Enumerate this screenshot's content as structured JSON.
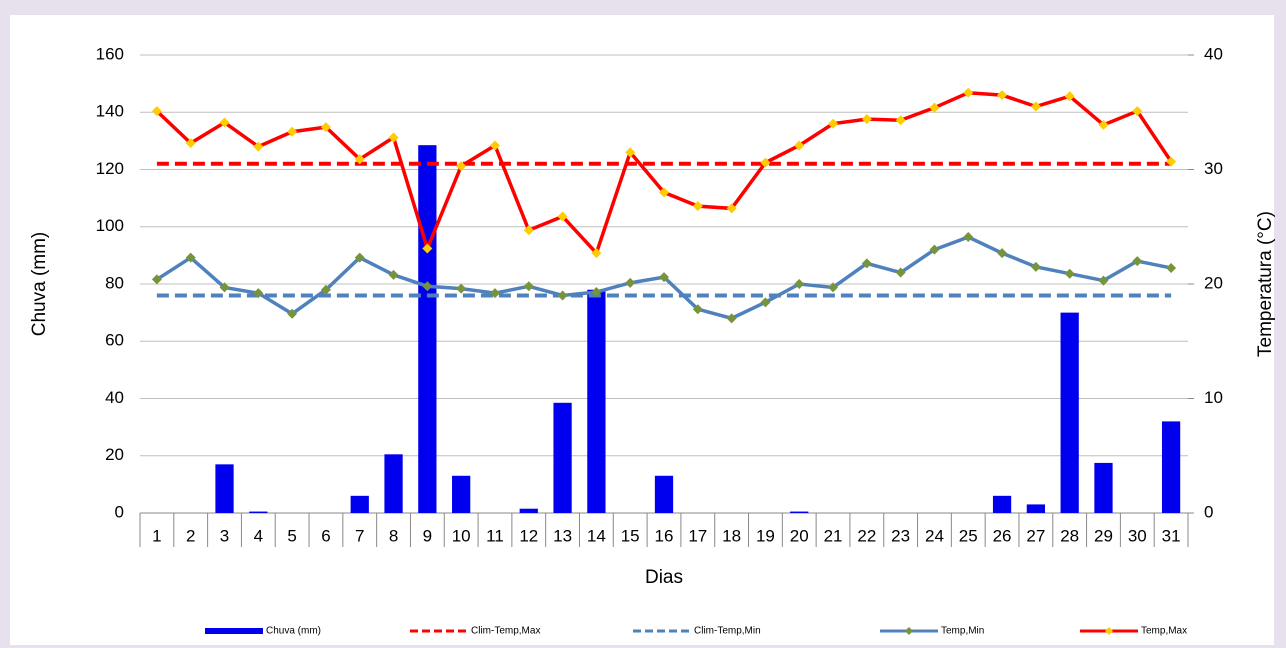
{
  "chart_data": {
    "type": "bar-line",
    "x_label": "Dias",
    "y_label": "Chuva (mm)",
    "y2_label": "Temperatura (°C)",
    "categories": [
      "1",
      "2",
      "3",
      "4",
      "5",
      "6",
      "7",
      "8",
      "9",
      "10",
      "11",
      "12",
      "13",
      "14",
      "15",
      "16",
      "17",
      "18",
      "19",
      "20",
      "21",
      "22",
      "23",
      "24",
      "25",
      "26",
      "27",
      "28",
      "29",
      "30",
      "31"
    ],
    "ylim": [
      0,
      160
    ],
    "yticks": [
      0,
      20,
      40,
      60,
      80,
      100,
      120,
      140,
      160
    ],
    "y2lim": [
      0,
      40
    ],
    "y2ticks": [
      0,
      10,
      20,
      30,
      40
    ],
    "grid": true,
    "legend": "bottom",
    "series": [
      {
        "name": "Chuva (mm)",
        "type": "bar",
        "color": "#0000ee",
        "values": [
          0,
          0,
          17,
          0.5,
          0,
          0,
          6,
          20.5,
          128.5,
          13,
          0,
          1.5,
          38.5,
          78,
          0,
          13,
          0,
          0,
          0,
          0.5,
          0,
          0,
          0,
          0,
          0,
          6,
          3,
          70,
          17.5,
          0,
          32
        ]
      },
      {
        "name": "Clim-Temp,Max",
        "type": "dashed",
        "axis": "y2",
        "color": "#ff0000",
        "values": [
          30.5,
          30.5,
          30.5,
          30.5,
          30.5,
          30.5,
          30.5,
          30.5,
          30.5,
          30.5,
          30.5,
          30.5,
          30.5,
          30.5,
          30.5,
          30.5,
          30.5,
          30.5,
          30.5,
          30.5,
          30.5,
          30.5,
          30.5,
          30.5,
          30.5,
          30.5,
          30.5,
          30.5,
          30.5,
          30.5,
          30.5
        ]
      },
      {
        "name": "Clim-Temp,Min",
        "type": "dashed",
        "axis": "y2",
        "color": "#4f81bd",
        "values": [
          19,
          19,
          19,
          19,
          19,
          19,
          19,
          19,
          19,
          19,
          19,
          19,
          19,
          19,
          19,
          19,
          19,
          19,
          19,
          19,
          19,
          19,
          19,
          19,
          19,
          19,
          19,
          19,
          19,
          19,
          19
        ]
      },
      {
        "name": "Temp,Min",
        "type": "line",
        "axis": "y2",
        "color": "#4f81bd",
        "marker_color": "#77933c",
        "values": [
          20.4,
          22.3,
          19.7,
          19.2,
          17.4,
          19.5,
          22.3,
          20.8,
          19.8,
          19.6,
          19.2,
          19.8,
          19.0,
          19.3,
          20.1,
          20.6,
          17.8,
          17.0,
          18.4,
          20.0,
          19.7,
          21.8,
          21.0,
          23.0,
          24.1,
          22.7,
          21.5,
          20.9,
          20.3,
          22.0,
          21.4
        ]
      },
      {
        "name": "Temp,Max",
        "type": "line",
        "axis": "y2",
        "color": "#ff0000",
        "marker_color": "#ffcc00",
        "values": [
          35.1,
          32.3,
          34.1,
          32.0,
          33.3,
          33.7,
          30.9,
          32.8,
          23.1,
          30.3,
          32.1,
          24.7,
          25.9,
          22.7,
          31.5,
          28.0,
          26.8,
          26.6,
          30.6,
          32.1,
          34.0,
          34.4,
          34.3,
          35.4,
          36.7,
          36.5,
          35.5,
          36.4,
          33.9,
          35.1,
          30.7
        ]
      }
    ]
  }
}
